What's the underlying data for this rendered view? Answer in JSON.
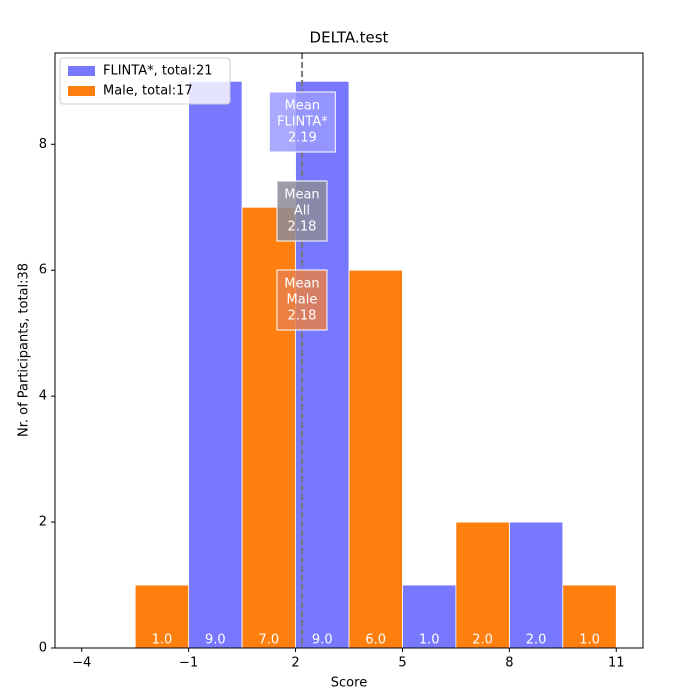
{
  "chart_data": {
    "type": "bar",
    "title": "DELTA.test",
    "x_label": "Score",
    "y_label": "Nr. of Participants, total:38",
    "bar_width": 1.5,
    "series": [
      {
        "name": "FLINTA*, total:21",
        "color": "#7878ff",
        "x": [
          -0.25,
          2.75,
          5.75,
          8.75
        ],
        "values": [
          9,
          9,
          1,
          2
        ],
        "value_labels": [
          "9.0",
          "9.0",
          "1.0",
          "2.0"
        ]
      },
      {
        "name": "Male, total:17",
        "color": "#ff7f0e",
        "x": [
          -1.75,
          1.25,
          4.25,
          7.25,
          10.25
        ],
        "values": [
          1,
          7,
          6,
          2,
          1
        ],
        "value_labels": [
          "1.0",
          "7.0",
          "6.0",
          "2.0",
          "1.0"
        ]
      }
    ],
    "means": [
      {
        "lines": [
          "Mean",
          "FLINTA*"
        ],
        "value": 2.19,
        "color": "#9a9aff"
      },
      {
        "lines": [
          "Mean",
          "All"
        ],
        "value": 2.18,
        "color": "#8c8c9a"
      },
      {
        "lines": [
          "Mean",
          "Male"
        ],
        "value": 2.18,
        "color": "#e8804a"
      }
    ],
    "xlim": [
      -4.75,
      11.75
    ],
    "ylim": [
      0,
      9.45
    ],
    "xticks": [
      {
        "value": -4,
        "label": "−4"
      },
      {
        "value": -1,
        "label": "−1"
      },
      2,
      5,
      8,
      11
    ],
    "yticks": [
      0,
      2,
      4,
      6,
      8
    ],
    "legend": "upper left"
  }
}
